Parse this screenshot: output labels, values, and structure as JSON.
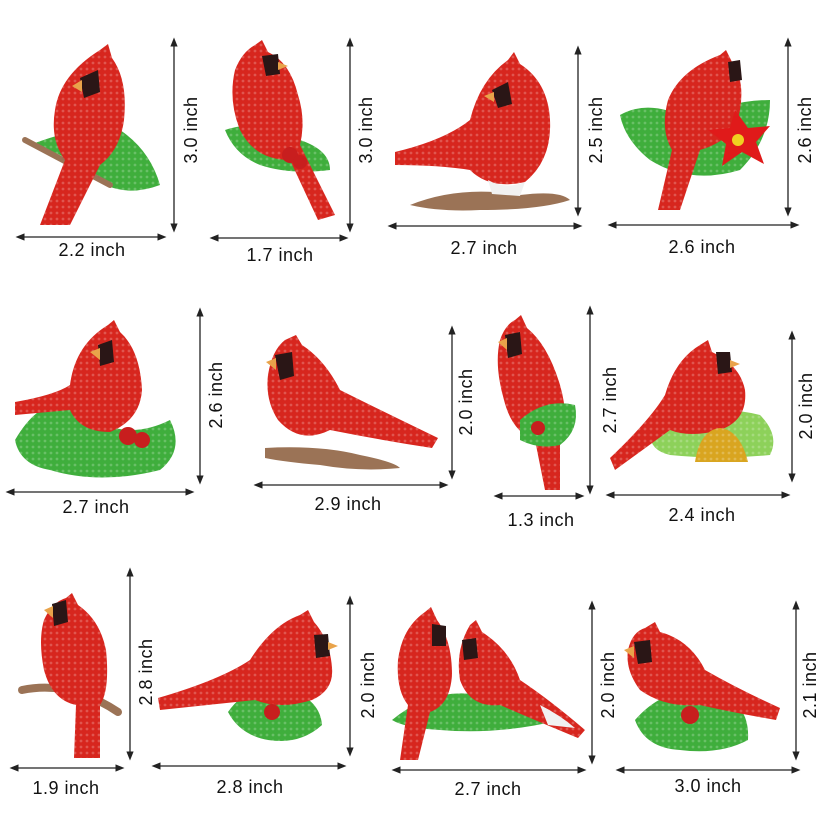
{
  "colors": {
    "red": "#d7261e",
    "dark_red": "#9e1712",
    "green": "#3fae3c",
    "light_green": "#8dd15a",
    "branch": "#9b7356",
    "mask": "#2a1616",
    "beak": "#e9a34a",
    "gold": "#d9a520"
  },
  "stickers": [
    {
      "name": "cardinal-1",
      "width": "2.2 inch",
      "height": "3.0 inch",
      "scene": "holly"
    },
    {
      "name": "cardinal-2",
      "width": "1.7 inch",
      "height": "3.0 inch",
      "scene": "holly"
    },
    {
      "name": "cardinal-3",
      "width": "2.7 inch",
      "height": "2.5 inch",
      "scene": "branch"
    },
    {
      "name": "cardinal-4",
      "width": "2.6 inch",
      "height": "2.6 inch",
      "scene": "poinsettia"
    },
    {
      "name": "cardinal-5",
      "width": "2.7 inch",
      "height": "2.6 inch",
      "scene": "holly"
    },
    {
      "name": "cardinal-6",
      "width": "2.9 inch",
      "height": "2.0 inch",
      "scene": "branch"
    },
    {
      "name": "cardinal-7",
      "width": "1.3 inch",
      "height": "2.7 inch",
      "scene": "holly"
    },
    {
      "name": "cardinal-8",
      "width": "2.4 inch",
      "height": "2.0 inch",
      "scene": "bells"
    },
    {
      "name": "cardinal-9",
      "width": "1.9 inch",
      "height": "2.8 inch",
      "scene": "branch"
    },
    {
      "name": "cardinal-10",
      "width": "2.8 inch",
      "height": "2.0 inch",
      "scene": "holly"
    },
    {
      "name": "cardinal-11",
      "width": "2.7 inch",
      "height": "2.0 inch",
      "scene": "pair"
    },
    {
      "name": "cardinal-12",
      "width": "3.0 inch",
      "height": "2.1 inch",
      "scene": "holly"
    }
  ]
}
